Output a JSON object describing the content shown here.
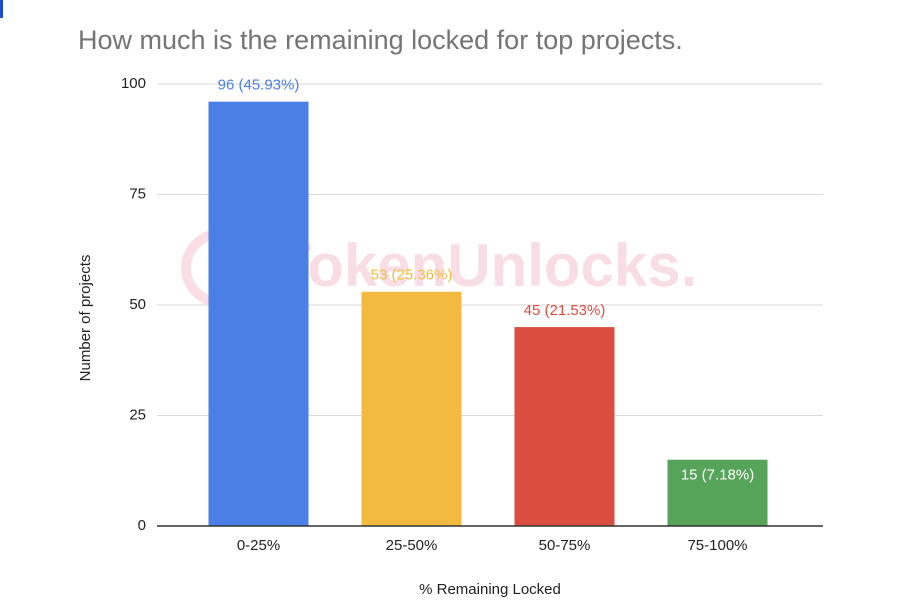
{
  "chart_data": {
    "type": "bar",
    "title": "How much is the remaining locked for top projects.",
    "x_label": "% Remaining Locked",
    "y_label": "Number of projects",
    "categories": [
      "0-25%",
      "25-50%",
      "50-75%",
      "75-100%"
    ],
    "values": [
      96,
      53,
      45,
      15
    ],
    "value_labels": [
      "96 (45.93%)",
      "53 (25.36%)",
      "45 (21.53%)",
      "15 (7.18%)"
    ],
    "colors": [
      "#4a7fe6",
      "#f2bb3f",
      "#db4e3f",
      "#56a35a"
    ],
    "ylim": [
      0,
      100
    ],
    "yticks": [
      0,
      25,
      50,
      75,
      100
    ],
    "grid": true,
    "watermark": "TokenUnlocks."
  }
}
